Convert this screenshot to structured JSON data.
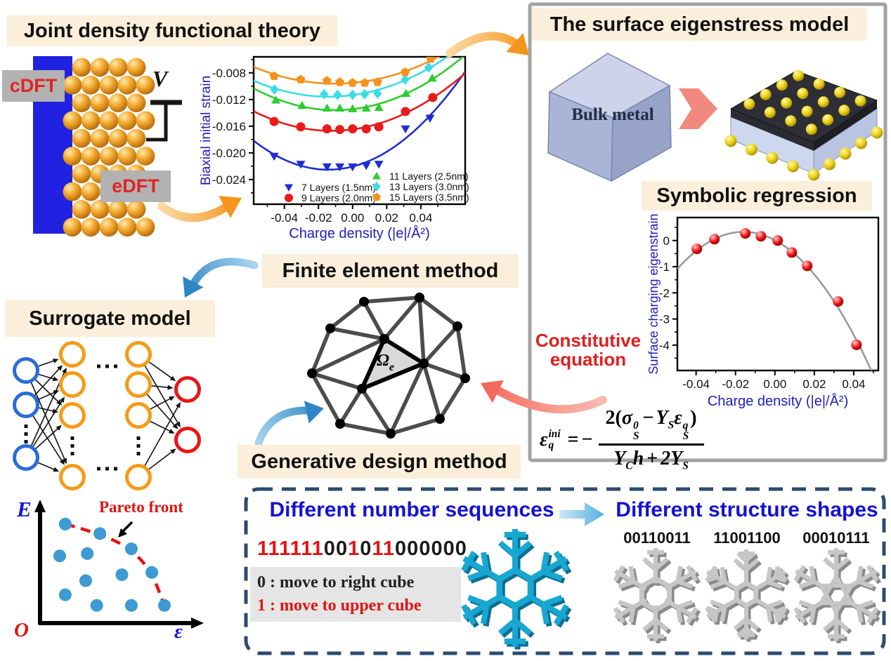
{
  "palette": {
    "cream": "#fbeeda",
    "label_gray": "#b2b2b2",
    "label_red": "#e02424",
    "electrode_blue": "#2121e2",
    "gold": "#f3a82c",
    "panel_border": "#a3a3a3",
    "dashed_border": "#2c4b70",
    "axis_title_blue": "#2020b8",
    "heading_blue": "#1612d0",
    "arrow_orange": "#f5941c",
    "arrow_blue": "#2e86c4",
    "arrow_salmon": "#f2685a",
    "nn_input": "#2a6cd6",
    "nn_hidden": "#f49b18",
    "nn_output": "#e61717",
    "flake_cyan": "#17a7d1",
    "flake_gray": "#c6c6c6"
  },
  "jdft": {
    "title": "Joint density functional theory",
    "cdft": "cDFT",
    "edft": "eDFT",
    "voltage": "V"
  },
  "eigenstress": {
    "title": "The surface eigenstress model",
    "cube_label": "Bulk metal"
  },
  "symbolic": {
    "title": "Symbolic regression"
  },
  "fem": {
    "title": "Finite element method",
    "element_label_base": "Ω",
    "element_label_sub": "e"
  },
  "gdm": {
    "title": "Generative design method"
  },
  "surrogate": {
    "title": "Surrogate model"
  },
  "constitutive": {
    "line1": "Constitutive",
    "line2": "equation",
    "formula": {
      "lhs_base": "ε",
      "lhs_sup": "ini",
      "lhs_sub": "q",
      "eq": "=",
      "neg": "−",
      "num_pre": "2(",
      "num_t1": "σ",
      "num_t1_sup": "0",
      "num_t1_sub": "S",
      "num_minus": "−",
      "num_t2": "Y",
      "num_t2_sub": "S",
      "num_t3": "ε",
      "num_t3_sup": "q",
      "num_t3_sub": "S",
      "num_post": ")",
      "den_t1": "Y",
      "den_t1_sub": "C",
      "den_t2": "h",
      "den_plus": "+",
      "den_t3": "2Y",
      "den_t3_sub": "S"
    }
  },
  "sequence_box": {
    "heading": "Different number sequences",
    "sequence": "111111001011000000",
    "digit_colors": {
      "1": "#e11414",
      "0": "#1c1c1c"
    },
    "rule0": "0 : move to right cube",
    "rule1": "1 : move to upper cube"
  },
  "shapes_box": {
    "heading": "Different structure shapes",
    "labels": [
      "00110011",
      "11001100",
      "00010111"
    ]
  },
  "chart_data": [
    {
      "id": "biaxial_initial_strain",
      "type": "scatter",
      "xlabel": "Charge density (|e|/Å²)",
      "ylabel": "Biaxial initial strain",
      "xlim": [
        -0.058,
        0.066
      ],
      "ylim": [
        -0.0277,
        -0.0056
      ],
      "xticks": [
        -0.04,
        -0.02,
        0,
        0.02,
        0.04
      ],
      "xtick_labels": [
        "-0.04",
        "-0.02",
        "0.00",
        "0.02",
        "0.04"
      ],
      "yticks": [
        -0.008,
        -0.012,
        -0.016,
        -0.02,
        -0.024
      ],
      "ytick_labels": [
        "-0.008",
        "-0.012",
        "-0.016",
        "-0.020",
        "-0.024"
      ],
      "grid": false,
      "legend_position": "inside-bottom",
      "series": [
        {
          "name": "7 Layers (1.5nm)",
          "marker": "triangle-down",
          "color": "#1e2ed2",
          "x": [
            -0.046,
            -0.0304,
            -0.015,
            -0.0075,
            0,
            0.008,
            0.0154,
            0.031,
            0.0454
          ],
          "y": [
            -0.0205,
            -0.0217,
            -0.0221,
            -0.0221,
            -0.0221,
            -0.0219,
            -0.0217,
            -0.0164,
            -0.0148
          ]
        },
        {
          "name": "9 Layers (2.0nm)",
          "marker": "circle",
          "color": "#e81a1a",
          "x": [
            -0.046,
            -0.0304,
            -0.015,
            -0.0075,
            0,
            0.008,
            0.0154,
            0.031,
            0.047
          ],
          "y": [
            -0.0153,
            -0.0161,
            -0.0164,
            -0.0165,
            -0.0164,
            -0.0164,
            -0.0161,
            -0.0138,
            -0.0117
          ]
        },
        {
          "name": "11 Layers (2.5nm)",
          "marker": "triangle-up",
          "color": "#2ecc2e",
          "x": [
            -0.045,
            -0.0296,
            -0.015,
            -0.0075,
            0,
            0.008,
            0.0154,
            0.0313,
            0.0467
          ],
          "y": [
            -0.0121,
            -0.0129,
            -0.0133,
            -0.0133,
            -0.0134,
            -0.0133,
            -0.0132,
            -0.0111,
            -0.0088
          ]
        },
        {
          "name": "13 Layers (3.0nm)",
          "marker": "diamond",
          "color": "#3cdce6",
          "x": [
            -0.0458,
            -0.0167,
            -0.0088,
            0,
            0.0071,
            0.0146,
            0.0308,
            0.0446
          ],
          "y": [
            -0.0105,
            -0.0112,
            -0.0113,
            -0.0113,
            -0.0112,
            -0.0111,
            -0.009,
            -0.0072
          ]
        },
        {
          "name": "15 Layers (3.5nm)",
          "marker": "pentagon",
          "color": "#f5921e",
          "x": [
            -0.046,
            -0.0304,
            -0.015,
            -0.0075,
            0,
            0.0071,
            0.0146,
            0.0308,
            0.0458
          ],
          "y": [
            -0.0085,
            -0.009,
            -0.0092,
            -0.0094,
            -0.0095,
            -0.0095,
            -0.0094,
            -0.0079,
            -0.0059
          ]
        }
      ]
    },
    {
      "id": "surface_charging_eigenstrain",
      "type": "scatter",
      "xlabel": "Charge density (|e|/Å²)",
      "ylabel": "Surface charging eigenstrain",
      "xlim": [
        -0.0495,
        0.0525
      ],
      "ylim": [
        -4.97,
        0.88
      ],
      "xticks": [
        -0.04,
        -0.02,
        0,
        0.02,
        0.04
      ],
      "xtick_labels": [
        "-0.04",
        "-0.02",
        "0.00",
        "0.02",
        "0.04"
      ],
      "yticks": [
        0,
        -1,
        -2,
        -3,
        -4
      ],
      "ytick_labels": [
        "0",
        "-1",
        "-2",
        "-3",
        "-4"
      ],
      "grid": false,
      "marker": "sphere",
      "color": "#e81414",
      "curve_color": "#9a9a9a",
      "x": [
        -0.0396,
        -0.0307,
        -0.015,
        -0.0071,
        0.0014,
        0.0086,
        0.0164,
        0.0321,
        0.0414
      ],
      "y": [
        -0.32,
        0.05,
        0.27,
        0.16,
        0.0,
        -0.46,
        -0.97,
        -2.33,
        -3.99
      ]
    },
    {
      "id": "pareto",
      "type": "scatter",
      "xlabel": "ε",
      "ylabel": "E",
      "origin_label": "O",
      "annotation": "Pareto front",
      "point_color": "#3d9ad2",
      "front_color": "#e01414",
      "front_points": [
        [
          0.16,
          0.84
        ],
        [
          0.38,
          0.76
        ],
        [
          0.58,
          0.63
        ],
        [
          0.71,
          0.43
        ],
        [
          0.79,
          0.15
        ]
      ],
      "scatter_points": [
        [
          0.125,
          0.57
        ],
        [
          0.3,
          0.59
        ],
        [
          0.29,
          0.36
        ],
        [
          0.52,
          0.41
        ],
        [
          0.16,
          0.24
        ],
        [
          0.36,
          0.15
        ],
        [
          0.58,
          0.15
        ]
      ]
    }
  ]
}
